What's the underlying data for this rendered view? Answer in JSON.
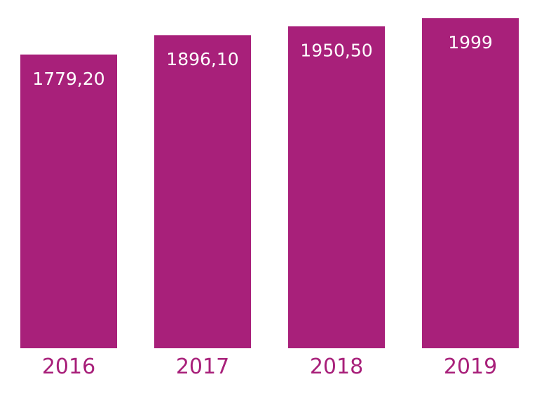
{
  "chart_data": {
    "type": "bar",
    "title": "",
    "xlabel": "",
    "ylabel": "",
    "categories": [
      "2016",
      "2017",
      "2018",
      "2019"
    ],
    "values": [
      1779.2,
      1896.1,
      1950.5,
      1999
    ],
    "value_labels": [
      "1779,20",
      "1896,10",
      "1950,50",
      "1999"
    ],
    "grid": false,
    "legend": "none",
    "colors": {
      "bar": "#a8207a",
      "tick_label": "#a8207a",
      "value_label": "#ffffff"
    }
  }
}
